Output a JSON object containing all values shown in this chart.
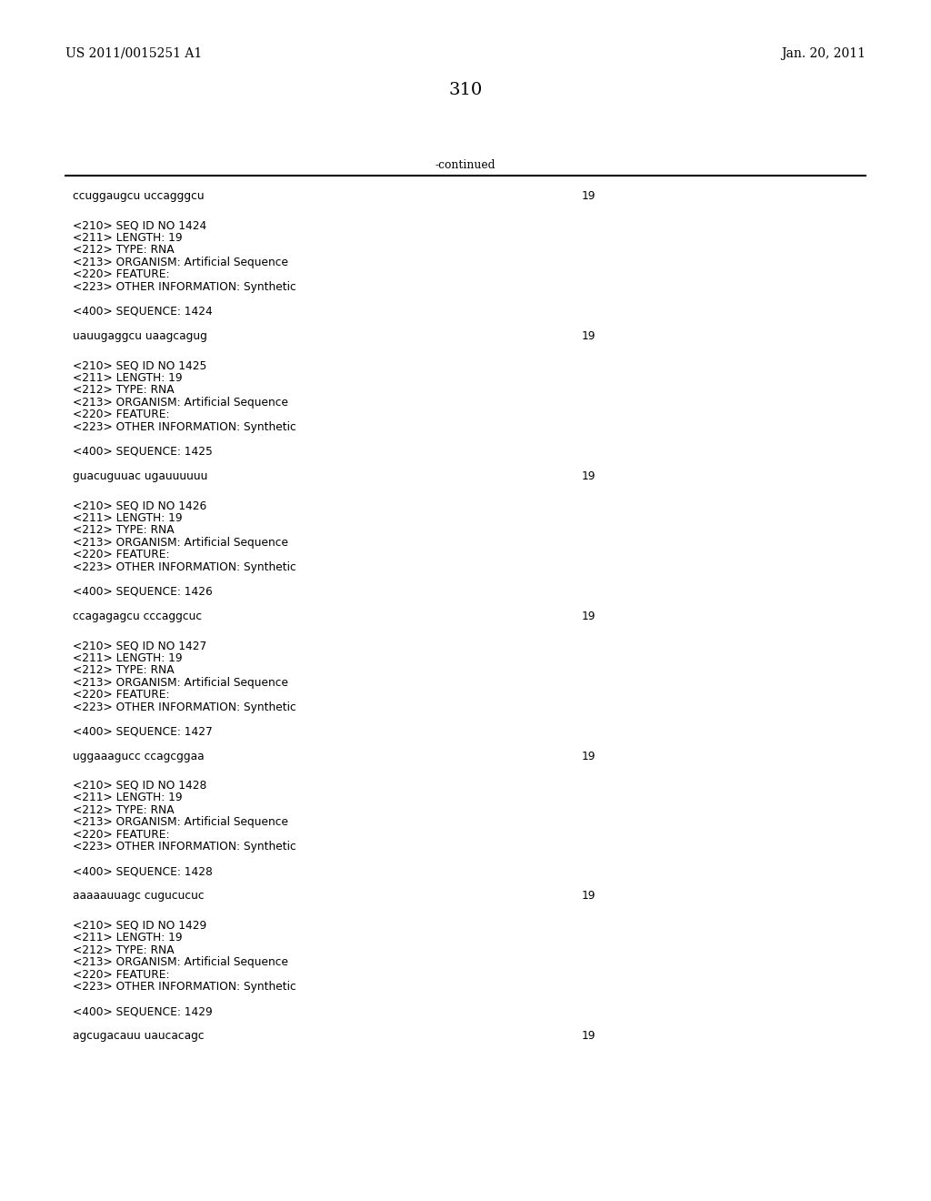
{
  "patent_number": "US 2011/0015251 A1",
  "date": "Jan. 20, 2011",
  "page_number": "310",
  "continued_label": "-continued",
  "background_color": "#ffffff",
  "text_color": "#000000",
  "header_font_size": 10.0,
  "page_num_font_size": 14.0,
  "body_font_size": 8.8,
  "mono_font_size": 8.8,
  "first_sequence": "ccuggaugcu uccagggcu",
  "entries": [
    {
      "seq_id": "1424",
      "sequence": "uauugaggcu uaagcagug"
    },
    {
      "seq_id": "1425",
      "sequence": "guacuguuac ugauuuuuu"
    },
    {
      "seq_id": "1426",
      "sequence": "ccagagagcu cccaggcuc"
    },
    {
      "seq_id": "1427",
      "sequence": "uggaaagucc ccagcggaa"
    },
    {
      "seq_id": "1428",
      "sequence": "aaaaauuagc cugucucuc"
    },
    {
      "seq_id": "1429",
      "sequence": "agcugacauu uaucacagc"
    }
  ]
}
